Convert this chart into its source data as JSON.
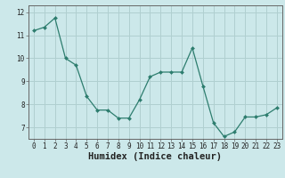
{
  "x": [
    0,
    1,
    2,
    3,
    4,
    5,
    6,
    7,
    8,
    9,
    10,
    11,
    12,
    13,
    14,
    15,
    16,
    17,
    18,
    19,
    20,
    21,
    22,
    23
  ],
  "y": [
    11.2,
    11.35,
    11.75,
    10.0,
    9.7,
    8.35,
    7.75,
    7.75,
    7.4,
    7.4,
    8.2,
    9.2,
    9.4,
    9.4,
    9.4,
    10.45,
    8.8,
    7.2,
    6.6,
    6.8,
    7.45,
    7.45,
    7.55,
    7.85
  ],
  "line_color": "#2d7d6e",
  "marker": "D",
  "marker_size": 2.0,
  "bg_color": "#cce8ea",
  "grid_color": "#b0cfd0",
  "xlabel": "Humidex (Indice chaleur)",
  "ylim": [
    6.5,
    12.3
  ],
  "xlim": [
    -0.5,
    23.5
  ],
  "yticks": [
    7,
    8,
    9,
    10,
    11,
    12
  ],
  "xticks": [
    0,
    1,
    2,
    3,
    4,
    5,
    6,
    7,
    8,
    9,
    10,
    11,
    12,
    13,
    14,
    15,
    16,
    17,
    18,
    19,
    20,
    21,
    22,
    23
  ],
  "tick_fontsize": 5.5,
  "xlabel_fontsize": 7.5,
  "label_color": "#222222",
  "linewidth": 0.9
}
